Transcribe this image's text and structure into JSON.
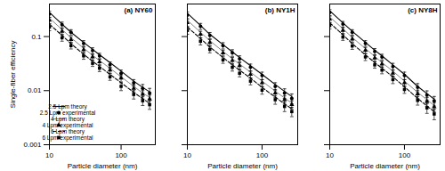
{
  "chart_data": [
    {
      "type": "line",
      "title": "(a) NY60",
      "xlabel": "Particle diameter (nm)",
      "ylabel": "Single-fiber efficiency",
      "log": true,
      "xlim": [
        10,
        300
      ],
      "ylim": [
        0.001,
        0.4
      ],
      "xticks": [
        10,
        100
      ],
      "yticks": [
        0.001,
        0.01,
        0.1
      ],
      "legend": "lower left",
      "x": [
        10,
        15,
        20,
        30,
        40,
        50,
        70,
        100,
        150,
        200,
        250
      ],
      "series": [
        {
          "name": "2.5 Lpm theory",
          "type": "line",
          "color": "#000000",
          "line_style": "solid",
          "values": [
            0.28,
            0.17,
            0.12,
            0.078,
            0.058,
            0.046,
            0.033,
            0.023,
            0.015,
            0.0115,
            0.0095
          ]
        },
        {
          "name": "2.5 Lpm experimental",
          "type": "scatter",
          "color": "#000000",
          "marker": "circle",
          "values": [
            0.26,
            0.165,
            0.12,
            0.075,
            0.055,
            0.044,
            0.03,
            0.021,
            0.014,
            0.011,
            0.009
          ],
          "errors": [
            0.035,
            0.02,
            0.014,
            0.009,
            0.007,
            0.005,
            0.004,
            0.003,
            0.002,
            0.002,
            0.002
          ]
        },
        {
          "name": "4 Lpm theory",
          "type": "line",
          "color": "#666666",
          "line_style": "solid",
          "values": [
            0.22,
            0.135,
            0.095,
            0.061,
            0.045,
            0.036,
            0.026,
            0.018,
            0.012,
            0.009,
            0.0075
          ]
        },
        {
          "name": "4 Lpm experimental",
          "type": "scatter",
          "color": "#000000",
          "marker": "triangle",
          "values": [
            0.2,
            0.125,
            0.088,
            0.057,
            0.042,
            0.034,
            0.024,
            0.017,
            0.011,
            0.0085,
            0.007
          ],
          "errors": [
            0.028,
            0.016,
            0.011,
            0.007,
            0.005,
            0.004,
            0.003,
            0.0025,
            0.0018,
            0.0015,
            0.0013
          ]
        },
        {
          "name": "6 Lpm theory",
          "type": "line",
          "color": "#000000",
          "line_style": "dashed",
          "values": [
            0.17,
            0.105,
            0.074,
            0.047,
            0.035,
            0.028,
            0.02,
            0.014,
            0.0093,
            0.0071,
            0.0058
          ]
        },
        {
          "name": "6 Lpm experimental",
          "type": "scatter",
          "color": "#000000",
          "marker": "square",
          "values": [
            0.15,
            0.095,
            0.068,
            0.044,
            0.032,
            0.026,
            0.018,
            0.012,
            0.0085,
            0.0065,
            0.0055
          ],
          "errors": [
            0.022,
            0.013,
            0.009,
            0.006,
            0.004,
            0.0035,
            0.0025,
            0.002,
            0.0015,
            0.0012,
            0.001
          ]
        }
      ]
    },
    {
      "type": "line",
      "title": "(b) NY1H",
      "xlabel": "Particle diameter (nm)",
      "log": true,
      "xlim": [
        10,
        300
      ],
      "ylim": [
        0.001,
        0.4
      ],
      "xticks": [
        10,
        100
      ],
      "yticks": [
        0.001,
        0.01,
        0.1
      ],
      "tick_labels": "x",
      "x": [
        10,
        15,
        20,
        30,
        40,
        50,
        70,
        100,
        150,
        200,
        250
      ],
      "series": [
        {
          "name": "2.5 Lpm theory",
          "type": "line",
          "color": "#000000",
          "line_style": "solid",
          "values": [
            0.27,
            0.16,
            0.11,
            0.071,
            0.052,
            0.041,
            0.029,
            0.02,
            0.013,
            0.0097,
            0.0078
          ]
        },
        {
          "name": "2.5 Lpm experimental",
          "type": "scatter",
          "color": "#000000",
          "marker": "circle",
          "values": [
            0.25,
            0.155,
            0.105,
            0.068,
            0.05,
            0.039,
            0.027,
            0.019,
            0.012,
            0.009,
            0.0072
          ],
          "errors": [
            0.035,
            0.02,
            0.014,
            0.009,
            0.007,
            0.005,
            0.004,
            0.003,
            0.002,
            0.0018,
            0.0015
          ]
        },
        {
          "name": "4 Lpm theory",
          "type": "line",
          "color": "#666666",
          "line_style": "solid",
          "values": [
            0.2,
            0.12,
            0.084,
            0.053,
            0.039,
            0.031,
            0.022,
            0.015,
            0.0098,
            0.0073,
            0.0059
          ]
        },
        {
          "name": "4 Lpm experimental",
          "type": "scatter",
          "color": "#000000",
          "marker": "triangle",
          "values": [
            0.18,
            0.11,
            0.078,
            0.05,
            0.036,
            0.029,
            0.02,
            0.014,
            0.009,
            0.0068,
            0.0055
          ],
          "errors": [
            0.026,
            0.015,
            0.01,
            0.006,
            0.005,
            0.004,
            0.003,
            0.002,
            0.0015,
            0.0012,
            0.001
          ]
        },
        {
          "name": "6 Lpm theory",
          "type": "line",
          "color": "#000000",
          "line_style": "dashed",
          "values": [
            0.15,
            0.092,
            0.064,
            0.041,
            0.03,
            0.024,
            0.017,
            0.0115,
            0.0076,
            0.0057,
            0.0046
          ]
        },
        {
          "name": "6 Lpm experimental",
          "type": "scatter",
          "color": "#000000",
          "marker": "square",
          "values": [
            0.13,
            0.082,
            0.058,
            0.037,
            0.027,
            0.021,
            0.015,
            0.0102,
            0.0068,
            0.0051,
            0.0041
          ],
          "errors": [
            0.02,
            0.012,
            0.008,
            0.005,
            0.004,
            0.003,
            0.0022,
            0.0016,
            0.0012,
            0.001,
            0.0008
          ]
        }
      ]
    },
    {
      "type": "line",
      "title": "(c) NY8H",
      "xlabel": "Particle diameter (nm)",
      "log": true,
      "xlim": [
        10,
        300
      ],
      "ylim": [
        0.001,
        0.4
      ],
      "xticks": [
        10,
        100
      ],
      "yticks": [
        0.001,
        0.01,
        0.1
      ],
      "tick_labels": "x",
      "x": [
        10,
        15,
        20,
        30,
        40,
        50,
        70,
        100,
        150,
        200,
        250
      ],
      "series": [
        {
          "name": "2.5 Lpm theory",
          "type": "line",
          "color": "#000000",
          "line_style": "solid",
          "values": [
            0.3,
            0.18,
            0.125,
            0.078,
            0.056,
            0.044,
            0.03,
            0.02,
            0.012,
            0.0088,
            0.007
          ]
        },
        {
          "name": "2.5 Lpm experimental",
          "type": "scatter",
          "color": "#000000",
          "marker": "circle",
          "values": [
            0.28,
            0.17,
            0.12,
            0.075,
            0.053,
            0.042,
            0.028,
            0.019,
            0.0115,
            0.0083,
            0.0065
          ],
          "errors": [
            0.035,
            0.02,
            0.014,
            0.009,
            0.007,
            0.005,
            0.004,
            0.003,
            0.002,
            0.0016,
            0.0013
          ]
        },
        {
          "name": "4 Lpm theory",
          "type": "line",
          "color": "#666666",
          "line_style": "solid",
          "values": [
            0.23,
            0.14,
            0.096,
            0.06,
            0.043,
            0.033,
            0.023,
            0.015,
            0.0093,
            0.0068,
            0.0053
          ]
        },
        {
          "name": "4 Lpm experimental",
          "type": "scatter",
          "color": "#000000",
          "marker": "triangle",
          "values": [
            0.21,
            0.13,
            0.09,
            0.056,
            0.04,
            0.031,
            0.021,
            0.014,
            0.0087,
            0.0063,
            0.005
          ],
          "errors": [
            0.028,
            0.016,
            0.011,
            0.007,
            0.005,
            0.004,
            0.003,
            0.002,
            0.0015,
            0.0012,
            0.001
          ]
        },
        {
          "name": "6 Lpm theory",
          "type": "line",
          "color": "#000000",
          "line_style": "dashed",
          "values": [
            0.18,
            0.108,
            0.074,
            0.046,
            0.033,
            0.026,
            0.018,
            0.0118,
            0.0072,
            0.0052,
            0.0041
          ]
        },
        {
          "name": "6 Lpm experimental",
          "type": "scatter",
          "color": "#000000",
          "marker": "square",
          "values": [
            0.16,
            0.098,
            0.067,
            0.042,
            0.03,
            0.024,
            0.016,
            0.0105,
            0.0066,
            0.0048,
            0.0037
          ],
          "errors": [
            0.022,
            0.013,
            0.009,
            0.006,
            0.004,
            0.0035,
            0.0025,
            0.0016,
            0.0012,
            0.001,
            0.0008
          ]
        }
      ]
    }
  ]
}
